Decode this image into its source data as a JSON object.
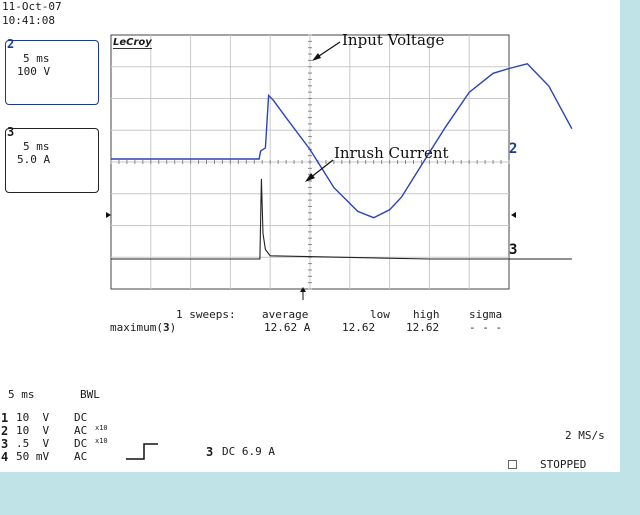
{
  "header": {
    "date": "11-Oct-07",
    "time": "10:41:08"
  },
  "brand": "LeCroy",
  "channel_boxes": [
    {
      "num": "2",
      "timebase": "5 ms",
      "scale": "100 V",
      "color": "#1a3c8f"
    },
    {
      "num": "3",
      "timebase": "5 ms",
      "scale": "5.0 A",
      "color": "#222222"
    }
  ],
  "annotations": {
    "input_voltage": "Input Voltage",
    "inrush_current": "Inrush Current"
  },
  "trace_markers": {
    "ch2": "2",
    "ch3": "3"
  },
  "measurement": {
    "sweeps_label": "1 sweeps:",
    "headers": [
      "average",
      "low",
      "high",
      "sigma"
    ],
    "row_label": "maximum(",
    "row_channel": "3",
    "row_close": ")",
    "values": [
      "12.62 A",
      "12.62",
      "12.62",
      "- - -"
    ]
  },
  "acquisition": {
    "timebase": "5 ms",
    "bwl": "BWL",
    "channels": [
      {
        "num": "1",
        "scale": "10  V",
        "coupling": "DC",
        "probe": ""
      },
      {
        "num": "2",
        "scale": "10  V",
        "coupling": "AC",
        "probe": "x10"
      },
      {
        "num": "3",
        "scale": ".5  V",
        "coupling": "DC",
        "probe": "x10"
      },
      {
        "num": "4",
        "scale": "50 mV",
        "coupling": "AC",
        "probe": ""
      }
    ],
    "trigger_channel": "3",
    "trigger_text": "DC 6.9 A",
    "sample_rate": "2 MS/s",
    "status": "STOPPED"
  },
  "chart_data": {
    "type": "line",
    "xlabel": "",
    "ylabel": "",
    "x_unit": "ms",
    "x_per_div": 5,
    "grid": true,
    "series": [
      {
        "name": "2",
        "color": "#2a43b8",
        "unit": "V",
        "per_div": 100,
        "x": [
          0,
          18.6,
          18.8,
          19.4,
          19.8,
          20.4,
          22,
          25,
          28,
          31,
          33,
          35,
          36.5,
          39,
          42,
          45,
          48,
          50,
          52.3,
          55,
          57.9
        ],
        "y": [
          0,
          0,
          25,
          35,
          200,
          185,
          130,
          30,
          -90,
          -165,
          -185,
          -160,
          -120,
          -20,
          100,
          210,
          270,
          285,
          300,
          230,
          95
        ]
      },
      {
        "name": "3",
        "color": "#222222",
        "unit": "A",
        "per_div": 5,
        "x": [
          0,
          18.7,
          18.8,
          18.9,
          19.1,
          19.4,
          20,
          40,
          57.9
        ],
        "y": [
          0,
          0,
          6,
          12.62,
          4,
          1.5,
          0.5,
          0,
          0
        ]
      }
    ]
  }
}
